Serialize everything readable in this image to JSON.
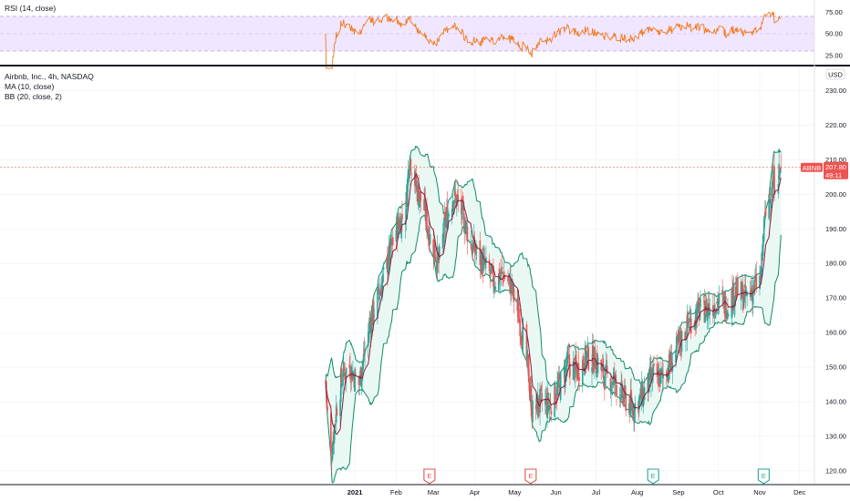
{
  "rsi_panel": {
    "label": "RSI (14, close)",
    "ticks": [
      "75.00",
      "50.00",
      "25.00"
    ]
  },
  "price_panel": {
    "legend": [
      "Airbnb, Inc., 4h, NASDAQ",
      "MA (10, close)",
      "BB (20, close, 2)"
    ],
    "currency": "USD",
    "ticks": [
      "230.00",
      "220.00",
      "210.00",
      "200.00",
      "190.00",
      "180.00",
      "170.00",
      "160.00",
      "150.00",
      "140.00",
      "130.00",
      "120.00"
    ],
    "symbol_tag": "ABNB",
    "price_tag": "207.80",
    "countdown_tag": "49:11"
  },
  "time_axis": {
    "labels": [
      "2021",
      "Feb",
      "Mar",
      "Apr",
      "May",
      "Jun",
      "Jul",
      "Aug",
      "Sep",
      "Oct",
      "Nov",
      "Dec"
    ]
  },
  "event_markers": [
    "E",
    "E",
    "E",
    "E"
  ],
  "colors": {
    "up_candle": "#26a69a",
    "down_candle": "#ef5350",
    "bollinger": "#0f8a6a",
    "bollinger_fill": "#e6f7f2",
    "moving_average": "#8b1c3a",
    "rsi_line": "#ef7b21",
    "rsi_band": "#f1e6ff",
    "price_tag": "#ef5350",
    "earnings_red": "#e0564f",
    "earnings_green": "#26a69a"
  },
  "chart_data": {
    "type": "candlestick",
    "symbol": "ABNB",
    "exchange": "NASDAQ",
    "interval": "4h",
    "last_price": 207.8,
    "ylim": [
      116,
      232
    ],
    "x_range": [
      "2020-12-10",
      "2021-12-08"
    ],
    "ma_period": 10,
    "bb_period": 20,
    "bb_stddev": 2,
    "rsi_period": 14,
    "rsi_ylim": [
      10,
      90
    ],
    "rsi_levels": [
      70,
      30
    ],
    "close_path": [
      [
        "2020-12-10",
        146
      ],
      [
        "2020-12-11",
        139
      ],
      [
        "2020-12-14",
        124
      ],
      [
        "2020-12-18",
        138
      ],
      [
        "2020-12-23",
        148
      ],
      [
        "2020-12-28",
        150
      ],
      [
        "2021-01-04",
        145
      ],
      [
        "2021-01-12",
        162
      ],
      [
        "2021-01-22",
        175
      ],
      [
        "2021-02-01",
        190
      ],
      [
        "2021-02-08",
        195
      ],
      [
        "2021-02-11",
        212
      ],
      [
        "2021-02-16",
        202
      ],
      [
        "2021-02-22",
        196
      ],
      [
        "2021-02-26",
        188
      ],
      [
        "2021-03-05",
        180
      ],
      [
        "2021-03-10",
        192
      ],
      [
        "2021-03-16",
        200
      ],
      [
        "2021-03-22",
        195
      ],
      [
        "2021-03-29",
        186
      ],
      [
        "2021-04-07",
        180
      ],
      [
        "2021-04-15",
        175
      ],
      [
        "2021-04-22",
        177
      ],
      [
        "2021-04-28",
        174
      ],
      [
        "2021-05-04",
        165
      ],
      [
        "2021-05-11",
        150
      ],
      [
        "2021-05-14",
        137
      ],
      [
        "2021-05-20",
        140
      ],
      [
        "2021-05-27",
        139
      ],
      [
        "2021-06-03",
        144
      ],
      [
        "2021-06-10",
        151
      ],
      [
        "2021-06-17",
        149
      ],
      [
        "2021-06-24",
        153
      ],
      [
        "2021-07-01",
        152
      ],
      [
        "2021-07-08",
        147
      ],
      [
        "2021-07-15",
        146
      ],
      [
        "2021-07-22",
        141
      ],
      [
        "2021-07-29",
        138
      ],
      [
        "2021-08-05",
        142
      ],
      [
        "2021-08-12",
        147
      ],
      [
        "2021-08-19",
        147
      ],
      [
        "2021-08-26",
        151
      ],
      [
        "2021-09-02",
        157
      ],
      [
        "2021-09-09",
        163
      ],
      [
        "2021-09-16",
        166
      ],
      [
        "2021-09-23",
        167
      ],
      [
        "2021-09-30",
        169
      ],
      [
        "2021-10-07",
        168
      ],
      [
        "2021-10-14",
        172
      ],
      [
        "2021-10-21",
        170
      ],
      [
        "2021-10-28",
        173
      ],
      [
        "2021-11-02",
        176
      ],
      [
        "2021-11-04",
        190
      ],
      [
        "2021-11-08",
        200
      ],
      [
        "2021-11-11",
        203
      ],
      [
        "2021-11-15",
        206
      ],
      [
        "2021-11-17",
        207.8
      ]
    ],
    "events": [
      {
        "date": "2021-02-26",
        "label": "E",
        "kind": "red"
      },
      {
        "date": "2021-05-13",
        "label": "E",
        "kind": "red"
      },
      {
        "date": "2021-08-13",
        "label": "E",
        "kind": "green"
      },
      {
        "date": "2021-11-04",
        "label": "E",
        "kind": "green"
      }
    ],
    "month_marks": [
      [
        "2021-01-01",
        "2021"
      ],
      [
        "2021-02-01",
        "Feb"
      ],
      [
        "2021-03-01",
        "Mar"
      ],
      [
        "2021-04-01",
        "Apr"
      ],
      [
        "2021-05-01",
        "May"
      ],
      [
        "2021-06-01",
        "Jun"
      ],
      [
        "2021-07-01",
        "Jul"
      ],
      [
        "2021-08-01",
        "Aug"
      ],
      [
        "2021-09-01",
        "Sep"
      ],
      [
        "2021-10-01",
        "Oct"
      ],
      [
        "2021-11-01",
        "Nov"
      ],
      [
        "2021-12-01",
        "Dec"
      ]
    ]
  }
}
